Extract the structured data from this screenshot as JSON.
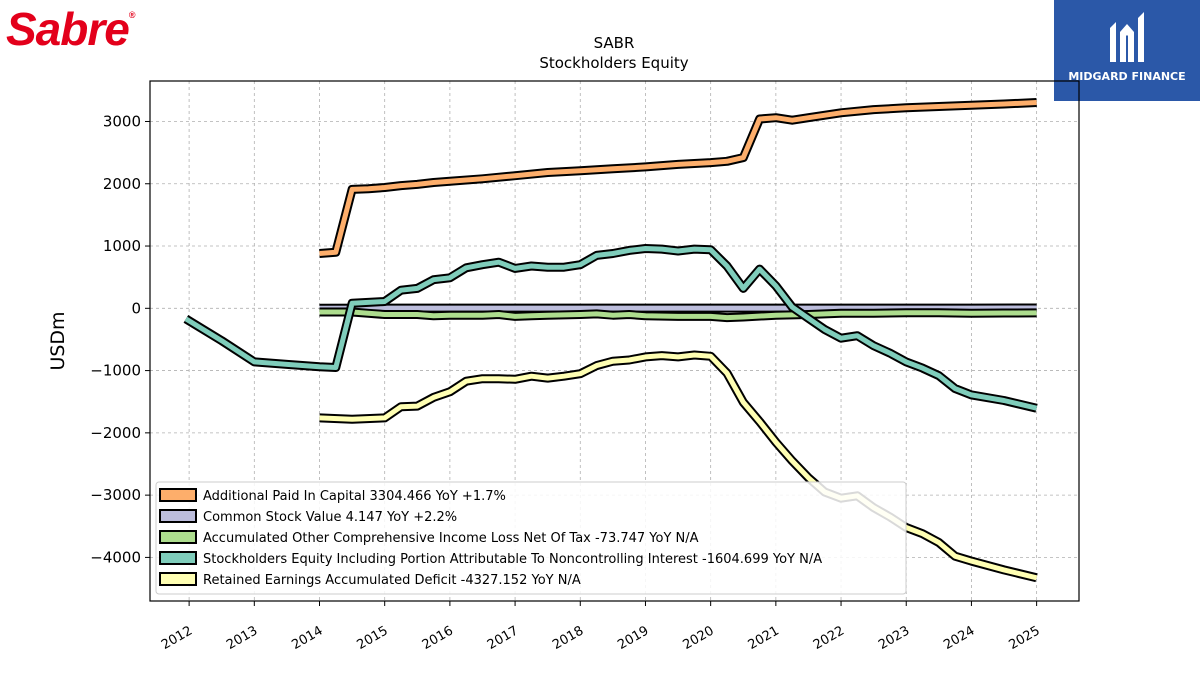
{
  "logo": {
    "text": "Sabre",
    "mark": "®",
    "color": "#e3001b"
  },
  "badge": {
    "text": "MIDGARD FINANCE",
    "icon": "midgard-finance-logo-icon",
    "color": "#2b58a8"
  },
  "chart_data": {
    "type": "line",
    "title": "SABR",
    "subtitle": "Stockholders  Equity",
    "ylabel": "USDm",
    "xlabel": "",
    "xlim": [
      2011.4,
      2025.65
    ],
    "ylim": [
      -4700,
      3650
    ],
    "yticks": [
      3000,
      2000,
      1000,
      0,
      -1000,
      -2000,
      -3000,
      -4000
    ],
    "ytick_labels": [
      "3000",
      "2000",
      "1000",
      "0",
      "−1000",
      "−2000",
      "−3000",
      "−4000"
    ],
    "xticks": [
      2012,
      2013,
      2014,
      2015,
      2016,
      2017,
      2018,
      2019,
      2020,
      2021,
      2022,
      2023,
      2024,
      2025
    ],
    "xtick_labels": [
      "2012",
      "2013",
      "2014",
      "2015",
      "2016",
      "2017",
      "2018",
      "2019",
      "2020",
      "2021",
      "2022",
      "2023",
      "2024",
      "2025"
    ],
    "grid": true,
    "legend_position": "lower-left",
    "series": [
      {
        "name": "Additional Paid In Capital",
        "legend": "Additional Paid In Capital  3304.466 YoY +1.7%",
        "color": "#fdae6b",
        "points": [
          [
            2014.0,
            880
          ],
          [
            2014.25,
            900
          ],
          [
            2014.5,
            1910
          ],
          [
            2014.75,
            1920
          ],
          [
            2015.0,
            1940
          ],
          [
            2015.25,
            1970
          ],
          [
            2015.5,
            1990
          ],
          [
            2015.75,
            2020
          ],
          [
            2016.0,
            2040
          ],
          [
            2016.5,
            2080
          ],
          [
            2017.0,
            2130
          ],
          [
            2017.5,
            2180
          ],
          [
            2018.0,
            2210
          ],
          [
            2018.5,
            2240
          ],
          [
            2019.0,
            2270
          ],
          [
            2019.5,
            2310
          ],
          [
            2020.0,
            2340
          ],
          [
            2020.25,
            2360
          ],
          [
            2020.5,
            2420
          ],
          [
            2020.75,
            3040
          ],
          [
            2021.0,
            3060
          ],
          [
            2021.25,
            3020
          ],
          [
            2021.5,
            3060
          ],
          [
            2022.0,
            3140
          ],
          [
            2022.5,
            3190
          ],
          [
            2023.0,
            3220
          ],
          [
            2023.5,
            3240
          ],
          [
            2024.0,
            3260
          ],
          [
            2024.5,
            3280
          ],
          [
            2025.0,
            3304.466
          ]
        ]
      },
      {
        "name": "Common Stock Value",
        "legend": "Common Stock Value  4.147 YoY +2.2%",
        "color": "#bcbddc",
        "points": [
          [
            2014.0,
            2.0
          ],
          [
            2015.0,
            2.7
          ],
          [
            2016.0,
            2.8
          ],
          [
            2017.0,
            2.8
          ],
          [
            2018.0,
            2.8
          ],
          [
            2019.0,
            2.9
          ],
          [
            2020.0,
            3.2
          ],
          [
            2021.0,
            3.3
          ],
          [
            2022.0,
            3.6
          ],
          [
            2023.0,
            3.8
          ],
          [
            2024.0,
            4.06
          ],
          [
            2025.0,
            4.147
          ]
        ]
      },
      {
        "name": "Accumulated Other Comprehensive Income Loss Net Of Tax",
        "legend": "Accumulated Other Comprehensive Income Loss Net Of Tax  -73.747 YoY N/A",
        "color": "#addd8e",
        "points": [
          [
            2014.0,
            -60
          ],
          [
            2014.5,
            -60
          ],
          [
            2014.75,
            -80
          ],
          [
            2015.0,
            -100
          ],
          [
            2015.5,
            -100
          ],
          [
            2015.75,
            -120
          ],
          [
            2016.0,
            -110
          ],
          [
            2016.5,
            -110
          ],
          [
            2016.75,
            -100
          ],
          [
            2017.0,
            -130
          ],
          [
            2017.25,
            -120
          ],
          [
            2017.5,
            -110
          ],
          [
            2018.0,
            -100
          ],
          [
            2018.25,
            -90
          ],
          [
            2018.5,
            -110
          ],
          [
            2018.75,
            -100
          ],
          [
            2019.0,
            -120
          ],
          [
            2019.5,
            -130
          ],
          [
            2020.0,
            -130
          ],
          [
            2020.25,
            -150
          ],
          [
            2020.5,
            -140
          ],
          [
            2021.0,
            -110
          ],
          [
            2021.5,
            -100
          ],
          [
            2022.0,
            -80
          ],
          [
            2022.5,
            -80
          ],
          [
            2023.0,
            -70
          ],
          [
            2023.5,
            -70
          ],
          [
            2024.0,
            -80
          ],
          [
            2024.5,
            -75
          ],
          [
            2025.0,
            -73.747
          ]
        ]
      },
      {
        "name": "Stockholders Equity Including Portion Attributable To Noncontrolling Interest",
        "legend": "Stockholders Equity Including Portion Attributable To Noncontrolling Interest  -1604.699 YoY N/A",
        "color": "#7fcdbb",
        "points": [
          [
            2011.95,
            -170
          ],
          [
            2012.5,
            -520
          ],
          [
            2013.0,
            -860
          ],
          [
            2013.5,
            -900
          ],
          [
            2014.0,
            -940
          ],
          [
            2014.25,
            -950
          ],
          [
            2014.5,
            80
          ],
          [
            2015.0,
            110
          ],
          [
            2015.25,
            290
          ],
          [
            2015.5,
            320
          ],
          [
            2015.75,
            460
          ],
          [
            2016.0,
            490
          ],
          [
            2016.25,
            650
          ],
          [
            2016.5,
            700
          ],
          [
            2016.75,
            740
          ],
          [
            2017.0,
            640
          ],
          [
            2017.25,
            680
          ],
          [
            2017.5,
            660
          ],
          [
            2017.75,
            660
          ],
          [
            2018.0,
            700
          ],
          [
            2018.25,
            850
          ],
          [
            2018.5,
            880
          ],
          [
            2018.75,
            930
          ],
          [
            2019.0,
            960
          ],
          [
            2019.25,
            950
          ],
          [
            2019.5,
            920
          ],
          [
            2019.75,
            950
          ],
          [
            2020.0,
            940
          ],
          [
            2020.25,
            680
          ],
          [
            2020.5,
            320
          ],
          [
            2020.75,
            630
          ],
          [
            2021.0,
            360
          ],
          [
            2021.25,
            20
          ],
          [
            2021.5,
            -160
          ],
          [
            2021.75,
            -340
          ],
          [
            2022.0,
            -480
          ],
          [
            2022.25,
            -440
          ],
          [
            2022.5,
            -600
          ],
          [
            2022.75,
            -720
          ],
          [
            2023.0,
            -860
          ],
          [
            2023.25,
            -960
          ],
          [
            2023.5,
            -1080
          ],
          [
            2023.75,
            -1290
          ],
          [
            2024.0,
            -1390
          ],
          [
            2024.5,
            -1480
          ],
          [
            2025.0,
            -1604.699
          ]
        ]
      },
      {
        "name": "Retained Earnings Accumulated Deficit",
        "legend": "Retained Earnings Accumulated Deficit  -4327.152 YoY N/A",
        "color": "#ffffb3",
        "points": [
          [
            2014.0,
            -1760
          ],
          [
            2014.5,
            -1780
          ],
          [
            2015.0,
            -1760
          ],
          [
            2015.25,
            -1580
          ],
          [
            2015.5,
            -1570
          ],
          [
            2015.75,
            -1430
          ],
          [
            2016.0,
            -1340
          ],
          [
            2016.25,
            -1170
          ],
          [
            2016.5,
            -1130
          ],
          [
            2016.75,
            -1130
          ],
          [
            2017.0,
            -1140
          ],
          [
            2017.25,
            -1090
          ],
          [
            2017.5,
            -1120
          ],
          [
            2017.75,
            -1090
          ],
          [
            2018.0,
            -1050
          ],
          [
            2018.25,
            -920
          ],
          [
            2018.5,
            -850
          ],
          [
            2018.75,
            -830
          ],
          [
            2019.0,
            -780
          ],
          [
            2019.25,
            -760
          ],
          [
            2019.5,
            -780
          ],
          [
            2019.75,
            -750
          ],
          [
            2020.0,
            -770
          ],
          [
            2020.25,
            -1040
          ],
          [
            2020.5,
            -1510
          ],
          [
            2020.75,
            -1820
          ],
          [
            2021.0,
            -2150
          ],
          [
            2021.25,
            -2450
          ],
          [
            2021.5,
            -2720
          ],
          [
            2021.75,
            -2950
          ],
          [
            2022.0,
            -3050
          ],
          [
            2022.25,
            -3010
          ],
          [
            2022.5,
            -3200
          ],
          [
            2022.75,
            -3350
          ],
          [
            2023.0,
            -3520
          ],
          [
            2023.25,
            -3620
          ],
          [
            2023.5,
            -3760
          ],
          [
            2023.75,
            -3980
          ],
          [
            2024.0,
            -4060
          ],
          [
            2024.5,
            -4200
          ],
          [
            2025.0,
            -4327.152
          ]
        ]
      }
    ]
  }
}
